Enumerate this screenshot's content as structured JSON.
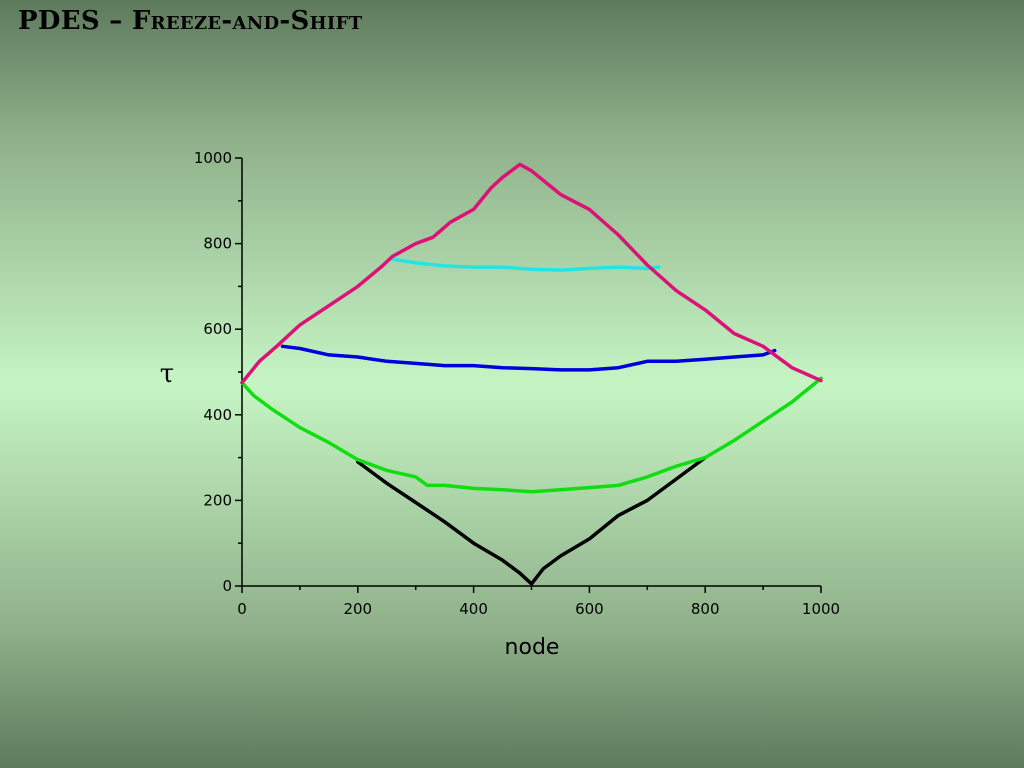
{
  "slide": {
    "title": "PDES – Freeze-and-Shift"
  },
  "chart_data": {
    "type": "line",
    "xlabel": "node",
    "ylabel": "τ",
    "xlim": [
      0,
      1000
    ],
    "ylim": [
      0,
      1000
    ],
    "xticks": [
      0,
      200,
      400,
      600,
      800,
      1000
    ],
    "yticks": [
      0,
      200,
      400,
      600,
      800,
      1000
    ],
    "grid": false,
    "series": [
      {
        "color": "#000000",
        "x": [
          200,
          250,
          300,
          350,
          400,
          450,
          480,
          500,
          520,
          550,
          600,
          650,
          700,
          750,
          800
        ],
        "y": [
          290,
          240,
          195,
          150,
          100,
          60,
          30,
          5,
          40,
          70,
          110,
          165,
          200,
          250,
          300
        ]
      },
      {
        "color": "#11dd11",
        "x": [
          0,
          20,
          50,
          100,
          150,
          200,
          250,
          300,
          320,
          350,
          400,
          450,
          500,
          550,
          600,
          650,
          700,
          750,
          800,
          850,
          900,
          950,
          1000
        ],
        "y": [
          475,
          445,
          415,
          370,
          335,
          295,
          270,
          255,
          235,
          235,
          228,
          225,
          220,
          225,
          230,
          235,
          255,
          280,
          300,
          340,
          385,
          430,
          485
        ]
      },
      {
        "color": "#0000dd",
        "x": [
          70,
          100,
          150,
          200,
          250,
          300,
          350,
          400,
          450,
          500,
          550,
          600,
          650,
          700,
          750,
          800,
          850,
          900,
          920
        ],
        "y": [
          560,
          555,
          540,
          535,
          525,
          520,
          515,
          515,
          510,
          508,
          505,
          505,
          510,
          525,
          525,
          530,
          535,
          540,
          550
        ]
      },
      {
        "color": "#22e6e6",
        "x": [
          255,
          300,
          350,
          400,
          450,
          500,
          550,
          600,
          650,
          700,
          720
        ],
        "y": [
          765,
          755,
          748,
          745,
          745,
          740,
          738,
          742,
          745,
          742,
          745
        ]
      },
      {
        "color": "#dd1177",
        "x": [
          0,
          30,
          60,
          100,
          150,
          200,
          240,
          260,
          300,
          330,
          360,
          400,
          430,
          450,
          480,
          500,
          550,
          600,
          650,
          700,
          750,
          800,
          850,
          900,
          950,
          1000
        ],
        "y": [
          475,
          525,
          560,
          610,
          655,
          700,
          745,
          770,
          800,
          815,
          850,
          880,
          930,
          955,
          985,
          970,
          915,
          880,
          820,
          750,
          690,
          645,
          590,
          560,
          510,
          480
        ]
      }
    ]
  }
}
